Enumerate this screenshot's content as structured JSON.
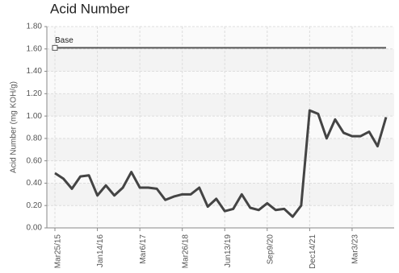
{
  "chart_data": {
    "type": "line",
    "title": "Acid Number",
    "y_label": "Acid Number (mg KOH/g)",
    "categories": [
      "Mar25/15",
      null,
      null,
      null,
      null,
      "Jan14/16",
      null,
      null,
      null,
      null,
      "Mar6/17",
      null,
      null,
      null,
      null,
      "Mar26/18",
      null,
      null,
      null,
      null,
      "Jun13/19",
      null,
      null,
      null,
      null,
      "Sep9/20",
      null,
      null,
      null,
      null,
      "Dec14/21",
      null,
      null,
      null,
      null,
      "Mar3/23",
      null,
      null,
      null,
      null
    ],
    "series": [
      {
        "name": "Acid Number",
        "color": "#444444",
        "values": [
          0.49,
          0.44,
          0.35,
          0.46,
          0.47,
          0.29,
          0.38,
          0.29,
          0.36,
          0.5,
          0.36,
          0.36,
          0.35,
          0.25,
          0.28,
          0.3,
          0.3,
          0.36,
          0.19,
          0.26,
          0.15,
          0.17,
          0.3,
          0.18,
          0.16,
          0.22,
          0.16,
          0.17,
          0.1,
          0.2,
          1.05,
          1.02,
          0.8,
          0.97,
          0.85,
          0.82,
          0.82,
          0.86,
          0.73,
          0.99
        ]
      }
    ],
    "reference_line": {
      "name": "Base",
      "value": 1.61,
      "color": "#555555"
    },
    "ylim": [
      0,
      1.8
    ],
    "yticks": [
      {
        "value": 0,
        "label": "0.00"
      },
      {
        "value": 0.2,
        "label": "0.20"
      },
      {
        "value": 0.4,
        "label": "0.40"
      },
      {
        "value": 0.6,
        "label": "0.60"
      },
      {
        "value": 0.8,
        "label": "0.80"
      },
      {
        "value": 1.0,
        "label": "1.00"
      },
      {
        "value": 1.2,
        "label": "1.20"
      },
      {
        "value": 1.4,
        "label": "1.40"
      },
      {
        "value": 1.6,
        "label": "1.60"
      },
      {
        "value": 1.8,
        "label": "1.80"
      }
    ],
    "grid": true
  }
}
